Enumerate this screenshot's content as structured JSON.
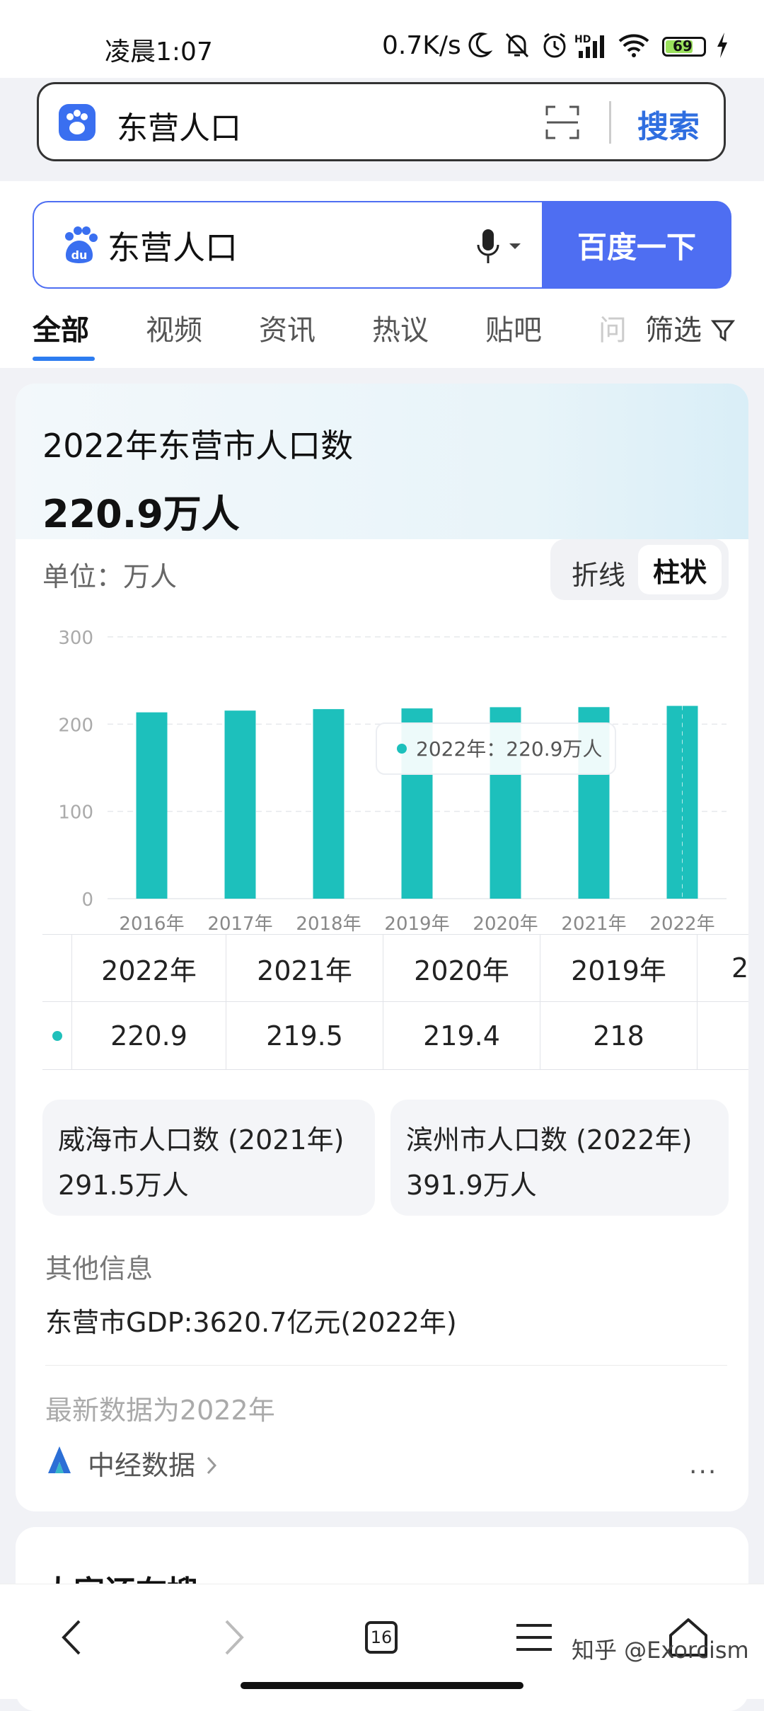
{
  "status_bar": {
    "time": "凌晨1:07",
    "net_speed": "0.7K/s",
    "network_badge": "HD",
    "battery": "69",
    "icons": [
      "moon-icon",
      "mute-bell-icon",
      "alarm-icon",
      "signal-icon",
      "wifi-icon",
      "battery-icon",
      "charging-icon"
    ]
  },
  "address_bar": {
    "query": "东营人口",
    "search_label": "搜索",
    "icons": [
      "baidu-paw-icon",
      "scan-icon"
    ]
  },
  "search": {
    "query": "东营人口",
    "button_label": "百度一下",
    "logo_text": "du"
  },
  "tabs": {
    "items": [
      "全部",
      "视频",
      "资讯",
      "热议",
      "贴吧",
      "问"
    ],
    "active": "全部",
    "filter_label": "筛选"
  },
  "card": {
    "title": "2022年东营市人口数",
    "value": "220.9万人",
    "unit_label": "单位：万人",
    "toggle": {
      "line": "折线",
      "bar": "柱状",
      "active": "柱状"
    },
    "tooltip": "2022年：220.9万人"
  },
  "chart_data": {
    "type": "bar",
    "categories": [
      "2016年",
      "2017年",
      "2018年",
      "2019年",
      "2020年",
      "2021年",
      "2022年"
    ],
    "values": [
      213.5,
      215.5,
      217.2,
      218.0,
      219.4,
      219.5,
      220.9
    ],
    "yticks": [
      0,
      100,
      200,
      300
    ],
    "ylim": [
      0,
      300
    ],
    "grid": true,
    "bar_color": "#1dc0bc",
    "highlight_index": 6
  },
  "table": {
    "headers": [
      "2022年",
      "2021年",
      "2020年",
      "2019年",
      "2"
    ],
    "values": [
      "220.9",
      "219.5",
      "219.4",
      "218",
      ""
    ]
  },
  "related": [
    {
      "title": "威海市人口数 (2021年)",
      "value": "291.5万人"
    },
    {
      "title": "滨州市人口数 (2022年)",
      "value": "391.9万人"
    }
  ],
  "other_info": {
    "label": "其他信息",
    "gdp": "东营市GDP:3620.7亿元(2022年)",
    "latest": "最新数据为2022年",
    "source": "中经数据",
    "more": "···"
  },
  "next_card": {
    "title": "大家还在搜"
  },
  "bottom_nav": {
    "tab_count": "16",
    "watermark": "知乎 @Exorcism",
    "icons": [
      "back-icon",
      "forward-icon",
      "tabs-icon",
      "menu-icon",
      "home-icon"
    ]
  },
  "colors": {
    "accent": "#4e6ef2",
    "bar": "#1dc0bc",
    "link": "#2f6ee0"
  }
}
